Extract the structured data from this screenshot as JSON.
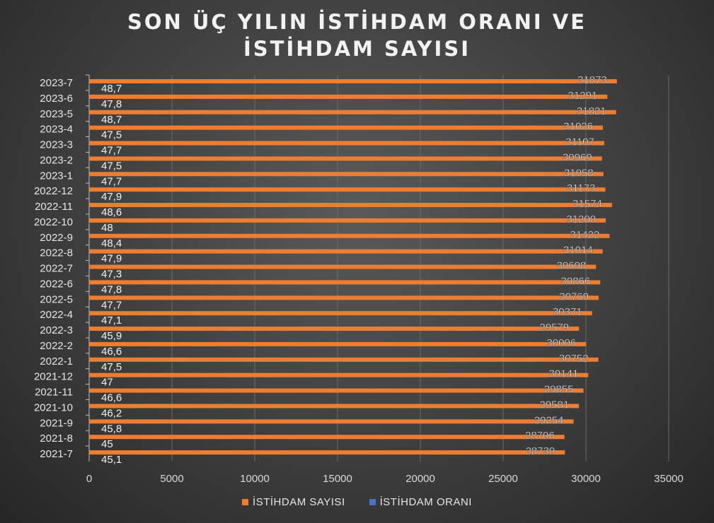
{
  "chart_data": {
    "type": "bar",
    "orientation": "horizontal",
    "title_lines": [
      "SON ÜÇ YILIN İSTİHDAM ORANI VE",
      "İSTİHDAM SAYISI"
    ],
    "categories": [
      "2023-7",
      "2023-6",
      "2023-5",
      "2023-4",
      "2023-3",
      "2023-2",
      "2023-1",
      "2022-12",
      "2022-11",
      "2022-10",
      "2022-9",
      "2022-8",
      "2022-7",
      "2022-6",
      "2022-5",
      "2022-4",
      "2022-3",
      "2022-2",
      "2022-1",
      "2021-12",
      "2021-11",
      "2021-10",
      "2021-9",
      "2021-8",
      "2021-7"
    ],
    "series": [
      {
        "name": "İSTİHDAM SAYISI",
        "color": "#ed7d31",
        "values": [
          31873,
          31291,
          31821,
          31026,
          31107,
          30969,
          31058,
          31173,
          31574,
          31200,
          31422,
          31014,
          30608,
          30866,
          30769,
          30371,
          29579,
          30006,
          30752,
          30141,
          29855,
          29581,
          29254,
          28706,
          28730
        ]
      },
      {
        "name": "İSTİHDAM ORANI",
        "color": "#4472c4",
        "values": [
          "48,7",
          "47,8",
          "48,7",
          "47,5",
          "47,7",
          "47,5",
          "47,7",
          "47,9",
          "48,6",
          "48",
          "48,4",
          "47,9",
          "47,3",
          "47,8",
          "47,7",
          "47,1",
          "45,9",
          "46,6",
          "47,5",
          "47",
          "46,6",
          "46,2",
          "45,8",
          "45",
          "45,1"
        ]
      }
    ],
    "x_ticks": [
      "0",
      "5000",
      "10000",
      "15000",
      "20000",
      "25000",
      "30000",
      "35000"
    ],
    "xlim": [
      0,
      35000
    ],
    "grid": true,
    "legend_position": "bottom"
  }
}
